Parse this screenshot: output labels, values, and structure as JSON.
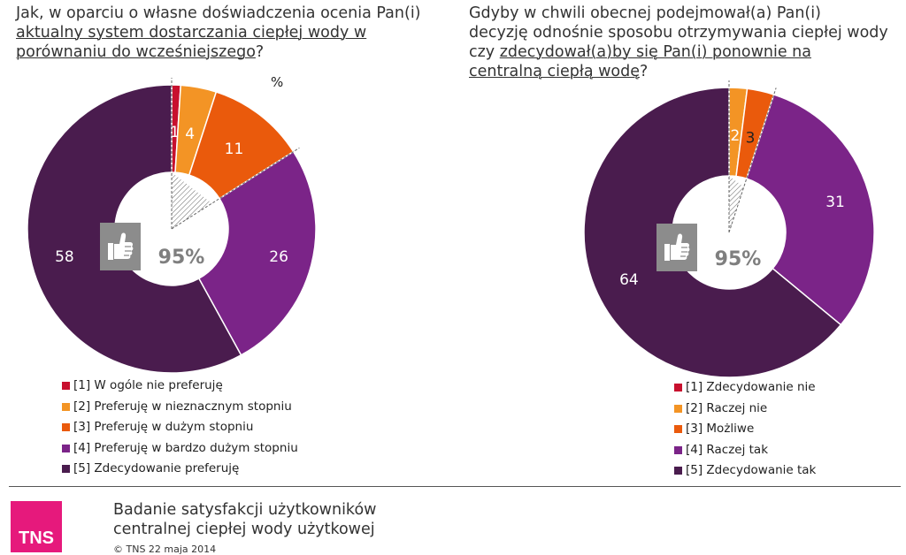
{
  "question1": {
    "line1": "Jak, w oparciu o własne doświadczenia ocenia Pan(i)",
    "line2": "aktualny system dostarczania ciepłej wody  w",
    "line3_underlined": "porównaniu do wcześniejszego",
    "line3_end": "?"
  },
  "question2": {
    "line1": "Gdyby w chwili obecnej podejmował(a) Pan(i)",
    "line2": "decyzję odnośnie sposobu otrzymywania ciepłej wody",
    "line3_start": "czy ",
    "line3_underlined": "zdecydował(a)by się Pan(i) ponownie na",
    "line4_underlined": "centralną ciepłą wodę",
    "line4_end": "?"
  },
  "percent_label": "%",
  "footer": {
    "logo": "TNS",
    "title_line1": "Badanie satysfakcji użytkowników",
    "title_line2": "centralnej ciepłej wody użytkowej",
    "copyright": "© TNS 22 maja 2014"
  },
  "icons": {
    "badge": "thumbs-up-icon"
  },
  "chart_data": [
    {
      "type": "pie",
      "variant": "donut",
      "categories": [
        "[1] W ogóle nie preferuję",
        "[2] Preferuję w nieznacznym stopniu",
        "[3] Preferuję w dużym stopniu",
        "[4] Preferuję w bardzo dużym stopniu",
        "[5] Zdecydowanie preferuję"
      ],
      "values": [
        1,
        4,
        11,
        26,
        58
      ],
      "value_labels": [
        "1",
        "4",
        "11",
        "26",
        "58"
      ],
      "colors": [
        "#c8102e",
        "#f39425",
        "#ea5a0c",
        "#7b2488",
        "#4a1c4e"
      ],
      "center_label": "95%",
      "legend_position": "bottom"
    },
    {
      "type": "pie",
      "variant": "donut",
      "categories": [
        "[1] Zdecydowanie nie",
        "[2] Raczej nie",
        "[3] Możliwe",
        "[4] Raczej tak",
        "[5] Zdecydowanie tak"
      ],
      "values": [
        0,
        2,
        3,
        31,
        64
      ],
      "value_labels": [
        "",
        "2",
        "3",
        "31",
        "64"
      ],
      "colors": [
        "#c8102e",
        "#f39425",
        "#ea5a0c",
        "#7b2488",
        "#4a1c4e"
      ],
      "center_label": "95%",
      "legend_position": "bottom-right"
    }
  ]
}
